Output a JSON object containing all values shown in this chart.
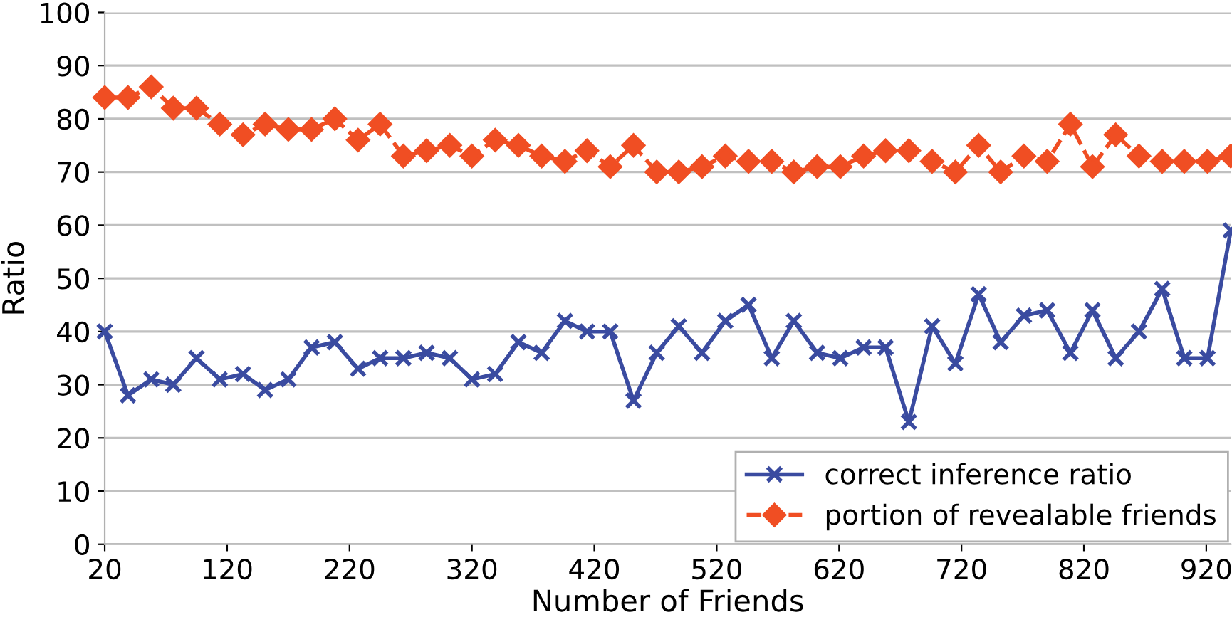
{
  "chart_data": {
    "type": "line",
    "xlabel": "Number of Friends",
    "ylabel": "Ratio",
    "x": [
      20,
      39,
      58,
      76,
      95,
      114,
      133,
      151,
      170,
      189,
      208,
      227,
      245,
      264,
      283,
      302,
      320,
      339,
      358,
      377,
      396,
      414,
      433,
      452,
      471,
      489,
      508,
      527,
      546,
      565,
      583,
      602,
      621,
      640,
      658,
      677,
      696,
      715,
      734,
      752,
      771,
      790,
      809,
      827,
      846,
      865,
      884,
      902,
      921,
      940
    ],
    "series": [
      {
        "name": "correct inference ratio",
        "color": "#3a4ba0",
        "marker": "cross",
        "line_style": "solid",
        "values": [
          40,
          28,
          31,
          30,
          35,
          31,
          32,
          29,
          31,
          37,
          38,
          33,
          35,
          35,
          36,
          35,
          31,
          32,
          38,
          36,
          42,
          40,
          40,
          27,
          36,
          41,
          36,
          42,
          45,
          35,
          42,
          36,
          35,
          37,
          37,
          23,
          41,
          34,
          47,
          38,
          43,
          44,
          36,
          44,
          35,
          40,
          48,
          35,
          35,
          59
        ]
      },
      {
        "name": "portion of revealable friends",
        "color": "#f04e23",
        "marker": "diamond",
        "line_style": "dashed",
        "values": [
          84,
          84,
          86,
          82,
          82,
          79,
          77,
          79,
          78,
          78,
          80,
          76,
          79,
          73,
          74,
          75,
          73,
          76,
          75,
          73,
          72,
          74,
          71,
          75,
          70,
          70,
          71,
          73,
          72,
          72,
          70,
          71,
          71,
          73,
          74,
          74,
          72,
          70,
          75,
          70,
          73,
          72,
          79,
          71,
          77,
          73,
          72,
          72,
          72,
          73
        ]
      }
    ],
    "xlim": [
      20,
      940
    ],
    "xticks": [
      20,
      120,
      220,
      320,
      420,
      520,
      620,
      720,
      820,
      920
    ],
    "ylim": [
      0,
      100
    ],
    "yticks": [
      0,
      10,
      20,
      30,
      40,
      50,
      60,
      70,
      80,
      90,
      100
    ],
    "grid": "y",
    "legend": "bottom right"
  }
}
